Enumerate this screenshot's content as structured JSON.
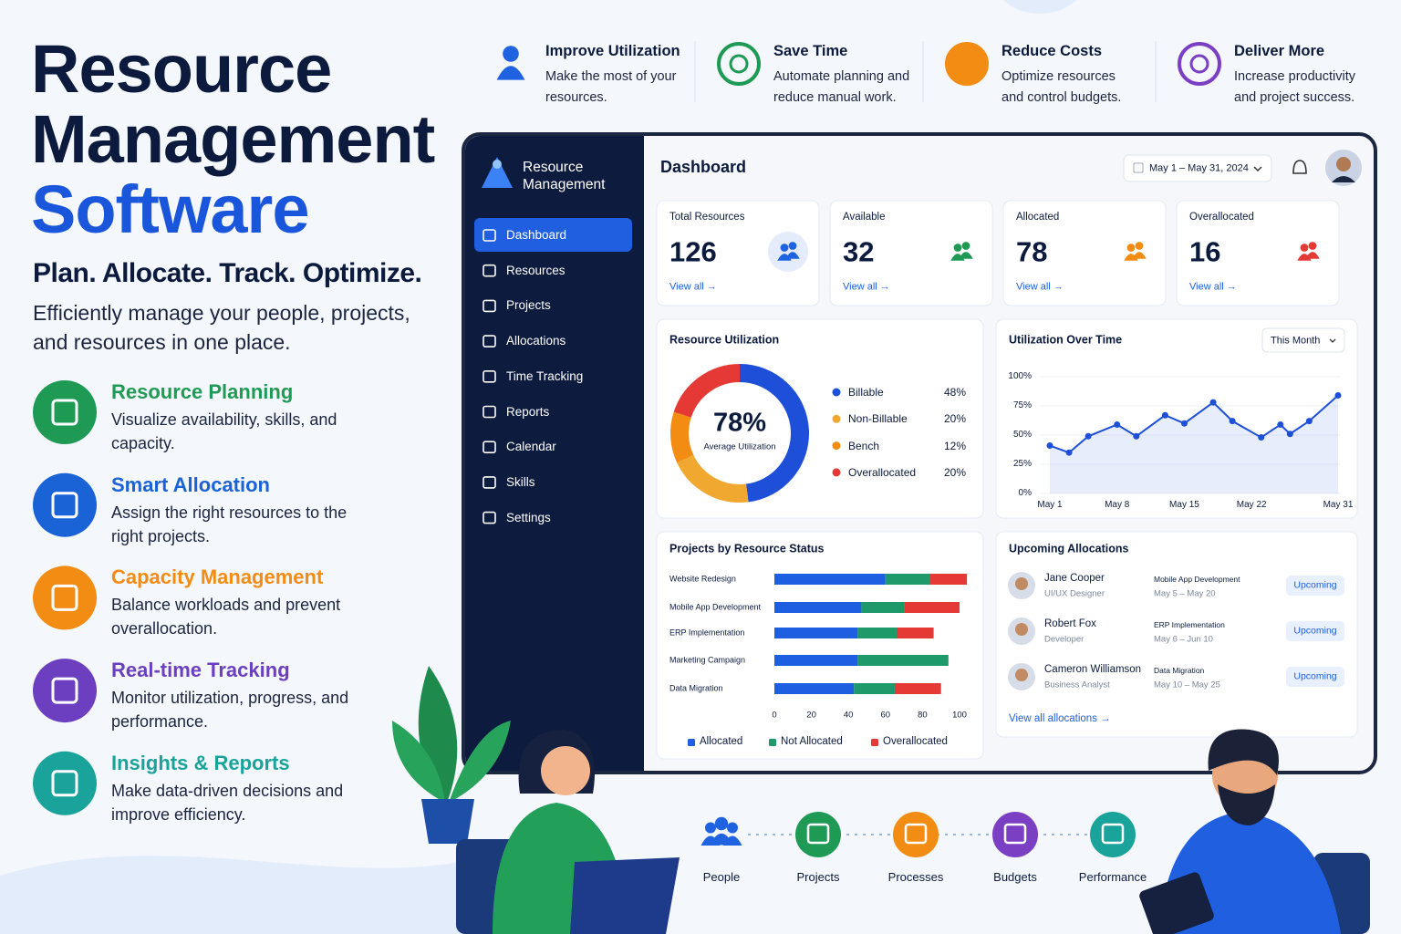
{
  "hero": {
    "title_lines": [
      "Resource",
      "Management",
      "Software"
    ],
    "tagline": "Plan. Allocate. Track. Optimize.",
    "description": "Efficiently manage your people, projects, and resources in one place."
  },
  "features": [
    {
      "title": "Resource Planning",
      "text": "Visualize availability, skills, and capacity.",
      "color": "#1e9a55"
    },
    {
      "title": "Smart Allocation",
      "text": "Assign the right resources to the right projects.",
      "color": "#1a63d6"
    },
    {
      "title": "Capacity Management",
      "text": "Balance workloads and prevent overallocation.",
      "color": "#f28c12"
    },
    {
      "title": "Real-time Tracking",
      "text": "Monitor utilization, progress, and performance.",
      "color": "#6b3fc0"
    },
    {
      "title": "Insights & Reports",
      "text": "Make data-driven decisions and improve efficiency.",
      "color": "#1aa39a"
    }
  ],
  "benefits": [
    {
      "title": "Improve Utilization",
      "text": "Make the most of your resources.",
      "color": "#1f63e0"
    },
    {
      "title": "Save Time",
      "text": "Automate planning and reduce manual work.",
      "color": "#1e9a55"
    },
    {
      "title": "Reduce Costs",
      "text": "Optimize resources and control budgets.",
      "color": "#f28c12"
    },
    {
      "title": "Deliver More",
      "text": "Increase productivity and project success.",
      "color": "#7b3fc4"
    }
  ],
  "app": {
    "brand": "Resource Management",
    "nav": [
      "Dashboard",
      "Resources",
      "Projects",
      "Allocations",
      "Time Tracking",
      "Reports",
      "Calendar",
      "Skills",
      "Settings"
    ],
    "active_nav": 0,
    "page_title": "Dashboard",
    "date_range": "May 1 – May 31, 2024",
    "stats": [
      {
        "label": "Total Resources",
        "value": 126,
        "link": "View all →",
        "color": "#1f63e0"
      },
      {
        "label": "Available",
        "value": 32,
        "link": "View all →",
        "color": "#1e9a55"
      },
      {
        "label": "Allocated",
        "value": 78,
        "link": "View all →",
        "color": "#f28c12"
      },
      {
        "label": "Overallocated",
        "value": 16,
        "link": "View all →",
        "color": "#e53935"
      }
    ],
    "utilization": {
      "title": "Resource Utilization",
      "center_value": "78%",
      "center_label": "Average Utilization",
      "categories": [
        "Billable",
        "Non-Billable",
        "Bench",
        "Overallocated"
      ],
      "values": [
        48,
        20,
        12,
        20
      ],
      "value_labels": [
        "48%",
        "20%",
        "12%",
        "20%"
      ],
      "colors": [
        "#1d4fd8",
        "#f0a830",
        "#f28c12",
        "#e53935"
      ]
    },
    "over_time": {
      "title": "Utilization Over Time",
      "filter": "This Month",
      "x": [
        1,
        3,
        5,
        8,
        10,
        13,
        15,
        18,
        20,
        23,
        25,
        26,
        28,
        31
      ],
      "values": [
        41,
        35,
        49,
        59,
        49,
        67,
        60,
        78,
        62,
        48,
        59,
        51,
        62,
        84
      ],
      "xlim": [
        1,
        31
      ],
      "xticks": [
        {
          "value": 1,
          "label": "May 1"
        },
        {
          "value": 8,
          "label": "May 8"
        },
        {
          "value": 15,
          "label": "May 15"
        },
        {
          "value": 22,
          "label": "May 22"
        },
        {
          "value": 31,
          "label": "May 31"
        }
      ],
      "ylim": [
        0,
        100
      ],
      "yticks": [
        {
          "value": 0,
          "label": "0%"
        },
        {
          "value": 25,
          "label": "25%"
        },
        {
          "value": 50,
          "label": "50%"
        },
        {
          "value": 75,
          "label": "75%"
        },
        {
          "value": 100,
          "label": "100%"
        }
      ],
      "color": "#1d4fd8"
    },
    "projects": {
      "title": "Projects by Resource Status",
      "categories": [
        "Website Redesign",
        "Mobile App Development",
        "ERP Implementation",
        "Marketing Campaign",
        "Data Migration"
      ],
      "series": [
        {
          "name": "Allocated",
          "color": "#1d5fe0",
          "values": [
            60,
            47,
            45,
            45,
            43
          ]
        },
        {
          "name": "Not Allocated",
          "color": "#1e9a6a",
          "values": [
            24,
            23,
            21,
            49,
            22
          ]
        },
        {
          "name": "Overallocated",
          "color": "#e53935",
          "values": [
            20,
            30,
            20,
            0,
            25
          ]
        }
      ],
      "xlim": [
        0,
        100
      ],
      "xticks": [
        0,
        20,
        40,
        60,
        80,
        100
      ]
    },
    "upcoming": {
      "title": "Upcoming Allocations",
      "items": [
        {
          "name": "Jane Cooper",
          "role": "UI/UX Designer",
          "project": "Mobile App Development",
          "dates": "May 5 – May 20",
          "status": "Upcoming"
        },
        {
          "name": "Robert Fox",
          "role": "Developer",
          "project": "ERP Implementation",
          "dates": "May 6 – Jun 10",
          "status": "Upcoming"
        },
        {
          "name": "Cameron Williamson",
          "role": "Business Analyst",
          "project": "Data Migration",
          "dates": "May 10 – May 25",
          "status": "Upcoming"
        }
      ],
      "link": "View all allocations →"
    }
  },
  "bottom_icons": [
    "People",
    "Projects",
    "Processes",
    "Budgets",
    "Performance"
  ]
}
